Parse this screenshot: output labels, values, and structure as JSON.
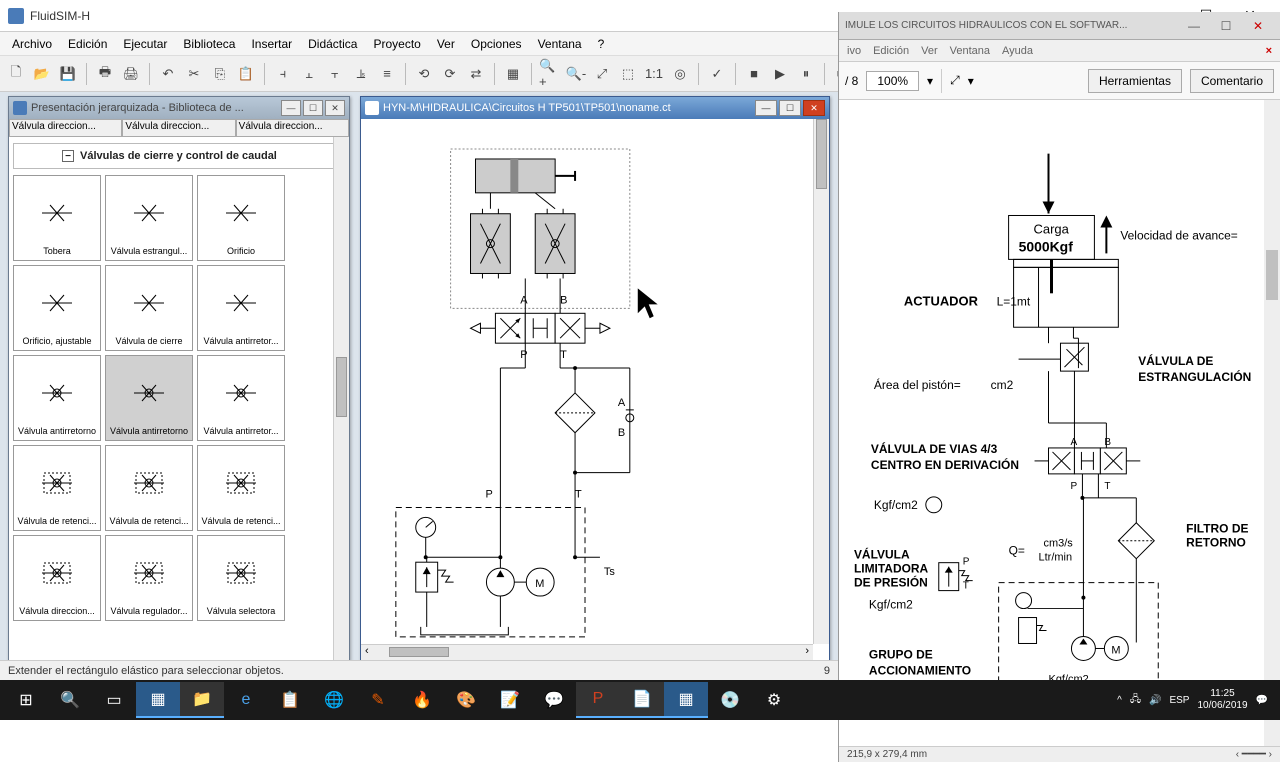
{
  "app": {
    "title": "FluidSIM-H"
  },
  "menu": [
    "Archivo",
    "Edición",
    "Ejecutar",
    "Biblioteca",
    "Insertar",
    "Didáctica",
    "Proyecto",
    "Ver",
    "Opciones",
    "Ventana",
    "?"
  ],
  "library": {
    "title": "Presentación jerarquizada - Biblioteca de ...",
    "tabs": [
      "Válvula direccion...",
      "Válvula direccion...",
      "Válvula direccion..."
    ],
    "section": "Válvulas de cierre y control de caudal",
    "cells": [
      {
        "label": "Tobera"
      },
      {
        "label": "Válvula estrangul..."
      },
      {
        "label": "Orificio"
      },
      {
        "label": "Orificio, ajustable"
      },
      {
        "label": "Válvula de cierre"
      },
      {
        "label": "Válvula antirretor..."
      },
      {
        "label": "Válvula antirretorno"
      },
      {
        "label": "Válvula antirretorno",
        "selected": true
      },
      {
        "label": "Válvula antirretor..."
      },
      {
        "label": "Válvula de retenci..."
      },
      {
        "label": "Válvula de retenci..."
      },
      {
        "label": "Válvula de retenci..."
      },
      {
        "label": "Válvula direccion..."
      },
      {
        "label": "Válvula regulador..."
      },
      {
        "label": "Válvula selectora"
      }
    ]
  },
  "circuit": {
    "title": "HYN-M\\HIDRAULICA\\Circuitos H TP501\\TP501\\noname.ct",
    "ports": {
      "A": "A",
      "B": "B",
      "P": "P",
      "T": "T",
      "P2": "P",
      "T2": "T",
      "Ts": "Ts",
      "A2": "A",
      "B2": "B"
    }
  },
  "pdf": {
    "bg_title": "IMULE LOS CIRCUITOS HIDRÁULICOS CON EL SOFTWAR...",
    "menu": [
      "ivo",
      "Edición",
      "Ver",
      "Ventana",
      "Ayuda"
    ],
    "page": "/ 8",
    "zoom": "100%",
    "tools": "Herramientas",
    "comment": "Comentario",
    "labels": {
      "carga": "Carga",
      "carga_val": "5000Kgf",
      "velocidad": "Velocidad de avance=",
      "actuador": "ACTUADOR",
      "L": "L=1mt",
      "area": "Área del pistón=",
      "cm2": "cm2",
      "v_estrang": "VÁLVULA DE",
      "v_estrang2": "ESTRANGULACIÓN",
      "v_vias": "VÁLVULA  DE VIAS 4/3",
      "v_vias2": "CENTRO EN DERIVACIÓN",
      "kgfcm2": "Kgf/cm2",
      "Q": "Q=",
      "cm3s": "cm3/s",
      "ltrmin": "Ltr/min",
      "filtro": "FILTRO DE",
      "filtro2": "RETORNO",
      "limitadora": "VÁLVULA",
      "limitadora2": "LIMITADORA",
      "limitadora3": "DE PRESIÓN",
      "grupo": "GRUPO DE",
      "grupo2": "ACCIONAMIENTO",
      "kgfcm2b": "Kgf/cm2",
      "A": "A",
      "B": "B",
      "P": "P",
      "T": "T"
    },
    "coords": "215,9 x 279,4 mm"
  },
  "status": {
    "msg": "Extender el rectángulo elástico para seleccionar objetos.",
    "page": "9"
  },
  "tray": {
    "lang": "ESP",
    "time": "11:25",
    "date": "10/06/2019"
  }
}
